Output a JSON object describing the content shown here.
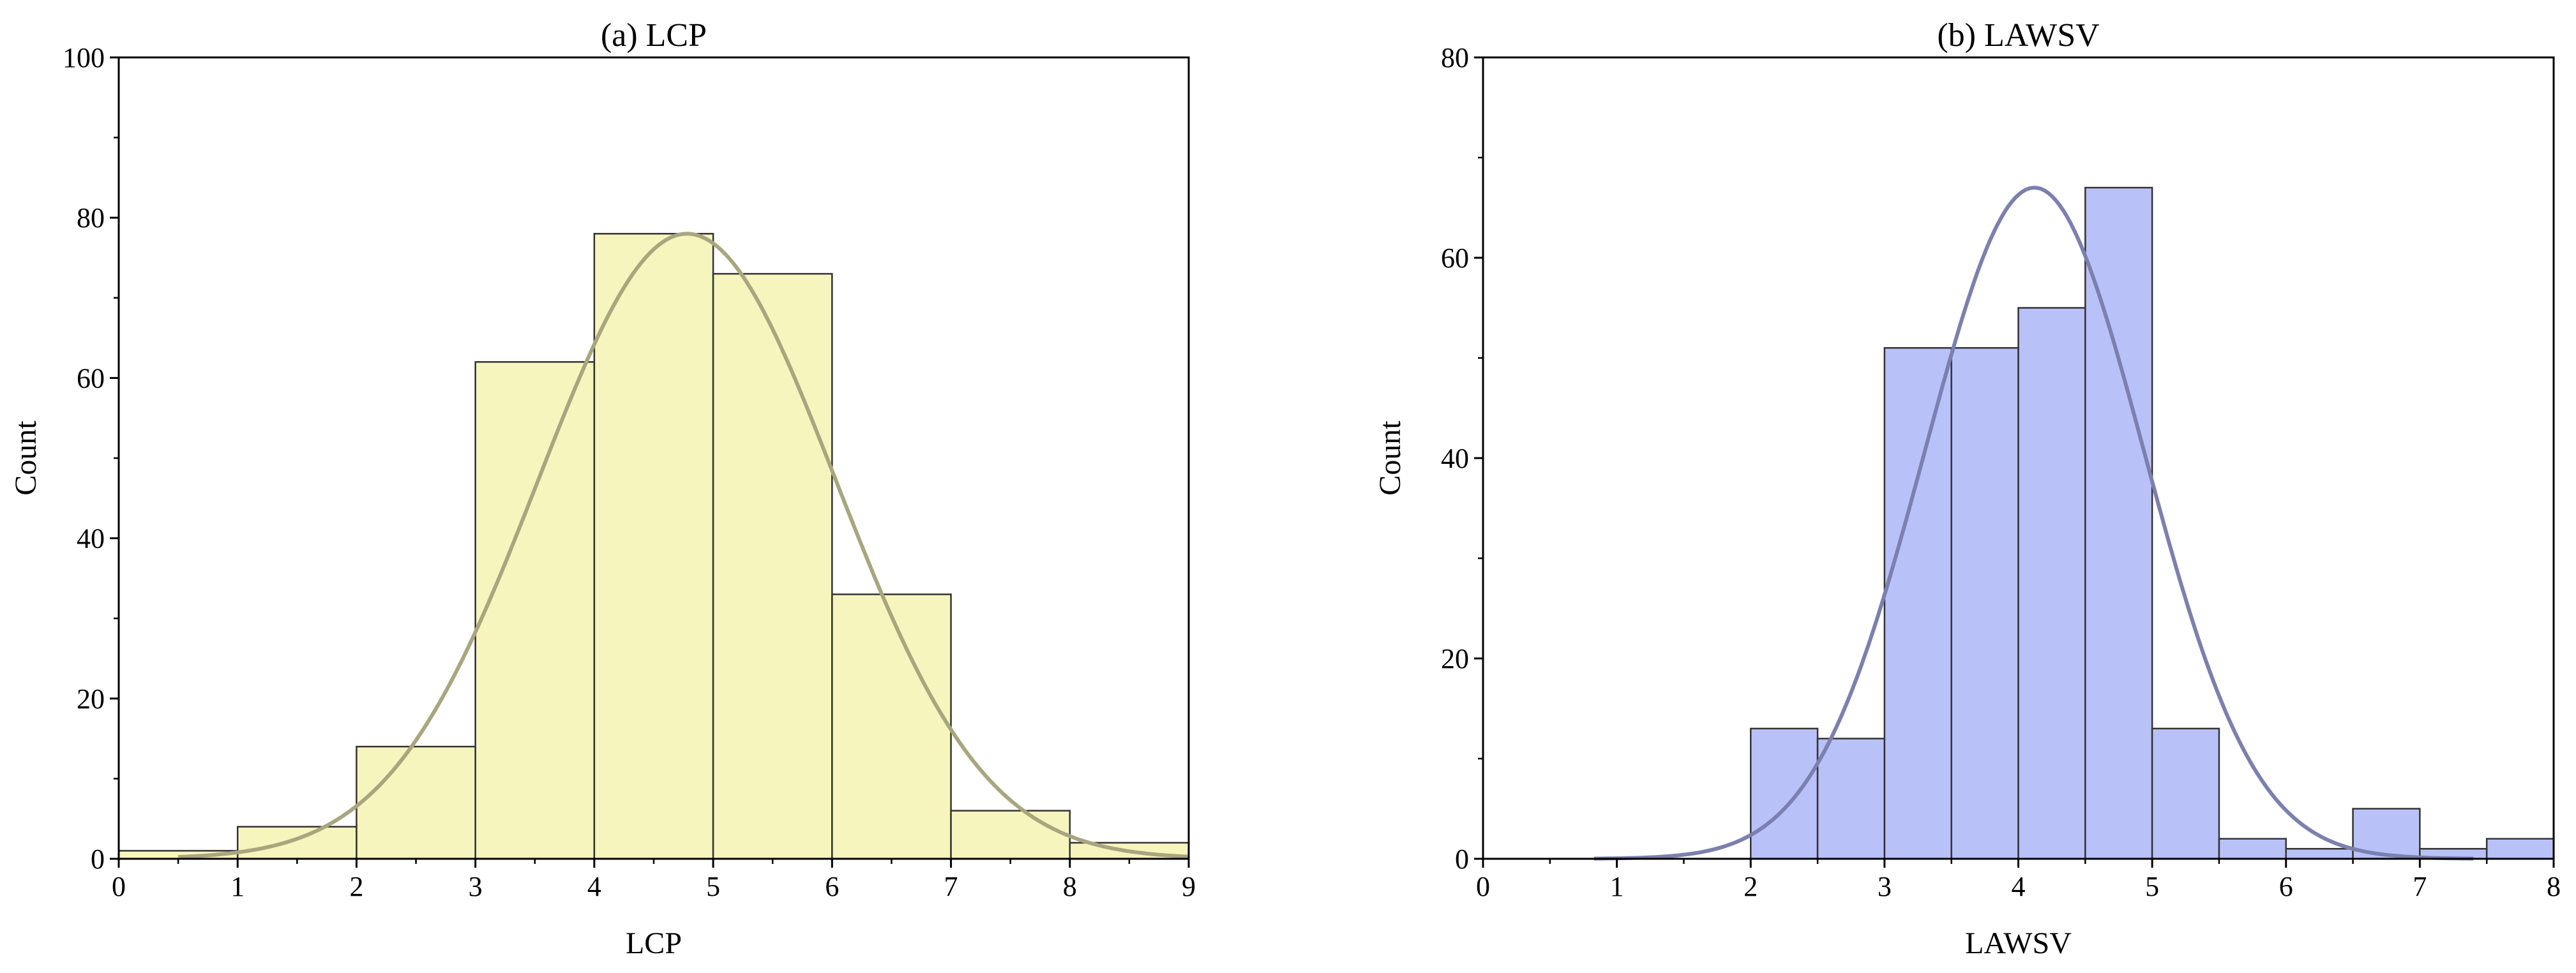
{
  "chart_data": [
    {
      "type": "bar",
      "title": "(a) LCP",
      "xlabel": "LCP",
      "ylabel": "Count",
      "xlim": [
        0,
        9
      ],
      "ylim": [
        0,
        100
      ],
      "xticks": [
        0,
        1,
        2,
        3,
        4,
        5,
        6,
        7,
        8,
        9
      ],
      "yticks": [
        0,
        20,
        40,
        60,
        80,
        100
      ],
      "bar_color": "#f6f5bd",
      "curve_color": "#a9a67f",
      "bins": [
        {
          "x0": 0,
          "x1": 1,
          "count": 1
        },
        {
          "x0": 1,
          "x1": 2,
          "count": 4
        },
        {
          "x0": 2,
          "x1": 3,
          "count": 14
        },
        {
          "x0": 3,
          "x1": 4,
          "count": 62
        },
        {
          "x0": 4,
          "x1": 5,
          "count": 78
        },
        {
          "x0": 5,
          "x1": 6,
          "count": 73
        },
        {
          "x0": 6,
          "x1": 7,
          "count": 33
        },
        {
          "x0": 7,
          "x1": 8,
          "count": 6
        },
        {
          "x0": 8,
          "x1": 9,
          "count": 2
        }
      ],
      "normal_curve": {
        "mean": 4.78,
        "sd": 1.25,
        "peak": 78,
        "x_range": [
          0.5,
          9
        ]
      }
    },
    {
      "type": "bar",
      "title": "(b) LAWSV",
      "xlabel": "LAWSV",
      "ylabel": "Count",
      "xlim": [
        0,
        8
      ],
      "ylim": [
        0,
        80
      ],
      "xticks": [
        0,
        1,
        2,
        3,
        4,
        5,
        6,
        7,
        8
      ],
      "yticks": [
        0,
        20,
        40,
        60,
        80
      ],
      "bar_color": "#b9c1f9",
      "curve_color": "#7b80ae",
      "bins": [
        {
          "x0": 2.0,
          "x1": 2.5,
          "count": 13
        },
        {
          "x0": 2.5,
          "x1": 3.0,
          "count": 12
        },
        {
          "x0": 3.0,
          "x1": 3.5,
          "count": 51
        },
        {
          "x0": 3.5,
          "x1": 4.0,
          "count": 51
        },
        {
          "x0": 4.0,
          "x1": 4.5,
          "count": 55
        },
        {
          "x0": 4.5,
          "x1": 5.0,
          "count": 67
        },
        {
          "x0": 5.0,
          "x1": 5.5,
          "count": 13
        },
        {
          "x0": 5.5,
          "x1": 6.0,
          "count": 2
        },
        {
          "x0": 6.0,
          "x1": 6.5,
          "count": 1
        },
        {
          "x0": 6.5,
          "x1": 7.0,
          "count": 5
        },
        {
          "x0": 7.0,
          "x1": 7.5,
          "count": 1
        },
        {
          "x0": 7.5,
          "x1": 8.0,
          "count": 2
        }
      ],
      "normal_curve": {
        "mean": 4.12,
        "sd": 0.82,
        "peak": 67,
        "x_range": [
          0.83,
          7.4
        ]
      }
    }
  ]
}
